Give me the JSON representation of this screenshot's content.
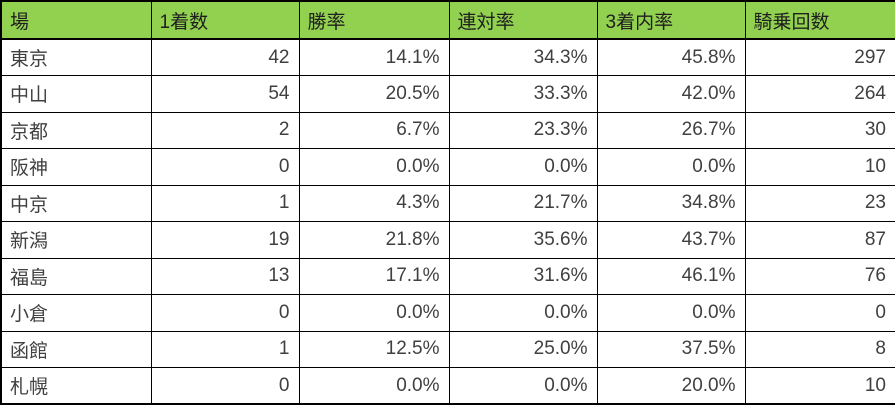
{
  "table": {
    "title": "venue-jockey-stats",
    "columns": [
      "場",
      "1着数",
      "勝率",
      "連対率",
      "3着内率",
      "騎乗回数"
    ],
    "rows": [
      [
        "東京",
        "42",
        "14.1%",
        "34.3%",
        "45.8%",
        "297"
      ],
      [
        "中山",
        "54",
        "20.5%",
        "33.3%",
        "42.0%",
        "264"
      ],
      [
        "京都",
        "2",
        "6.7%",
        "23.3%",
        "26.7%",
        "30"
      ],
      [
        "阪神",
        "0",
        "0.0%",
        "0.0%",
        "0.0%",
        "10"
      ],
      [
        "中京",
        "1",
        "4.3%",
        "21.7%",
        "34.8%",
        "23"
      ],
      [
        "新潟",
        "19",
        "21.8%",
        "35.6%",
        "43.7%",
        "87"
      ],
      [
        "福島",
        "13",
        "17.1%",
        "31.6%",
        "46.1%",
        "76"
      ],
      [
        "小倉",
        "0",
        "0.0%",
        "0.0%",
        "0.0%",
        "0"
      ],
      [
        "函館",
        "1",
        "12.5%",
        "25.0%",
        "37.5%",
        "8"
      ],
      [
        "札幌",
        "0",
        "0.0%",
        "0.0%",
        "20.0%",
        "10"
      ]
    ]
  },
  "colors": {
    "header_bg": "#92d050",
    "header_text": "#1f1f1f",
    "cell_text": "#404040",
    "cell_bg": "#ffffff",
    "grid_border": "#000000"
  }
}
